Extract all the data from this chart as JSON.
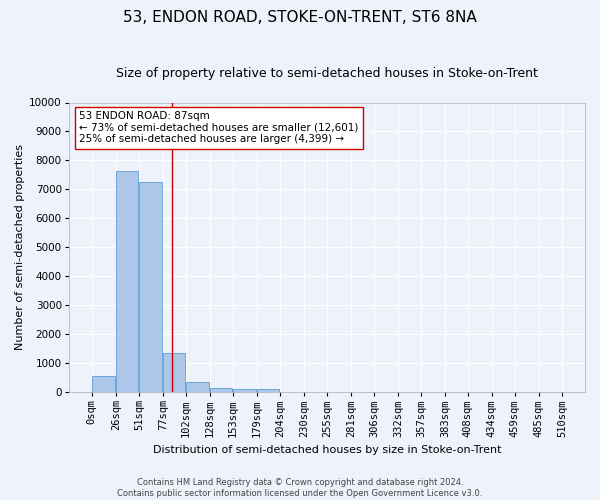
{
  "title": "53, ENDON ROAD, STOKE-ON-TRENT, ST6 8NA",
  "subtitle": "Size of property relative to semi-detached houses in Stoke-on-Trent",
  "xlabel": "Distribution of semi-detached houses by size in Stoke-on-Trent",
  "ylabel": "Number of semi-detached properties",
  "footer_line1": "Contains HM Land Registry data © Crown copyright and database right 2024.",
  "footer_line2": "Contains public sector information licensed under the Open Government Licence v3.0.",
  "annotation_title": "53 ENDON ROAD: 87sqm",
  "annotation_line1": "← 73% of semi-detached houses are smaller (12,601)",
  "annotation_line2": "25% of semi-detached houses are larger (4,399) →",
  "property_size": 87,
  "bin_edges": [
    0,
    26,
    51,
    77,
    102,
    128,
    153,
    179,
    204,
    230,
    255,
    281,
    306,
    332,
    357,
    383,
    408,
    434,
    459,
    485,
    510
  ],
  "bar_values": [
    550,
    7650,
    7250,
    1350,
    350,
    150,
    120,
    100,
    0,
    0,
    0,
    0,
    0,
    0,
    0,
    0,
    0,
    0,
    0,
    0
  ],
  "bar_color": "#aec6e8",
  "bar_edge_color": "#5a9fd4",
  "vline_color": "#cc0000",
  "vline_x": 87,
  "ylim": [
    0,
    10000
  ],
  "yticks": [
    0,
    1000,
    2000,
    3000,
    4000,
    5000,
    6000,
    7000,
    8000,
    9000,
    10000
  ],
  "background_color": "#eef2fb",
  "grid_color": "#ffffff",
  "title_fontsize": 11,
  "subtitle_fontsize": 9,
  "axis_label_fontsize": 8,
  "tick_fontsize": 7.5,
  "footer_fontsize": 6,
  "annotation_fontsize": 7.5
}
